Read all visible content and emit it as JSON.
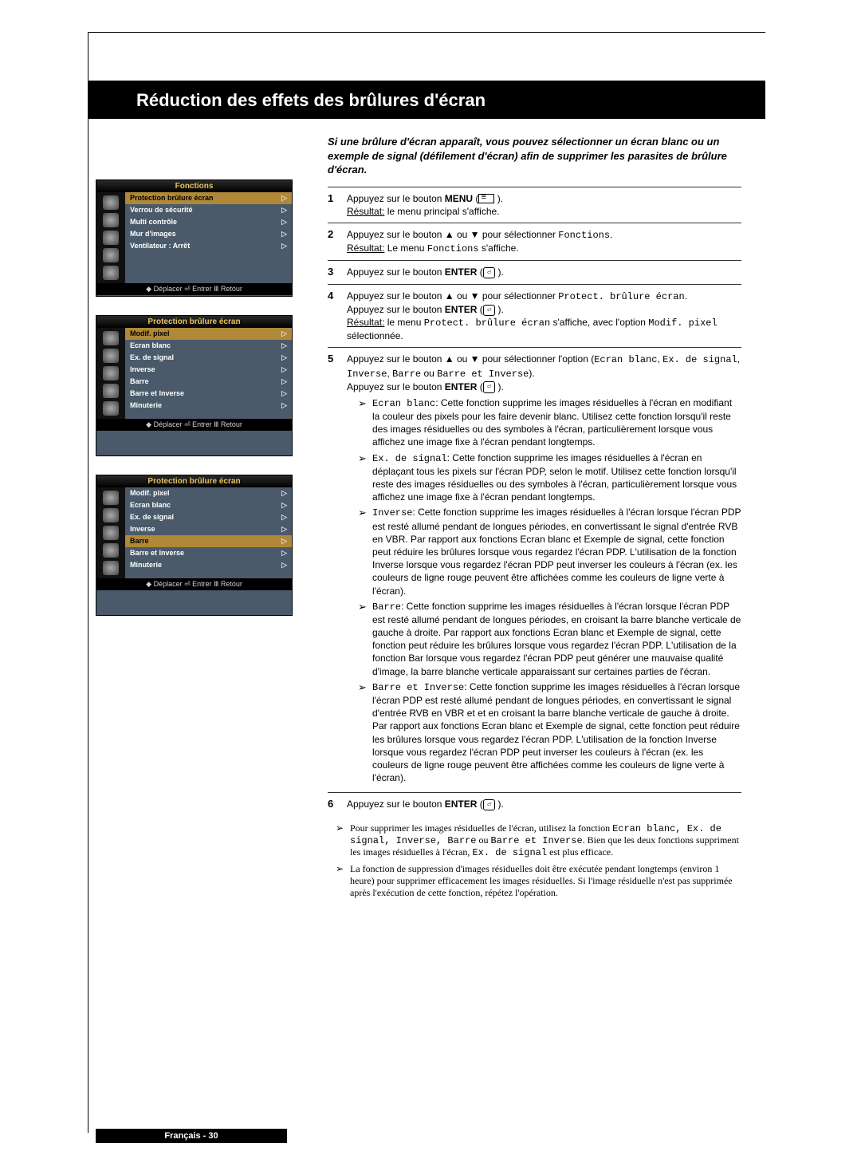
{
  "title": "Réduction des effets des brûlures d'écran",
  "intro": "Si une brûlure d'écran apparaît, vous pouvez sélectionner un écran blanc ou un exemple de signal (défilement d'écran) afin de supprimer les parasites de brûlure d'écran.",
  "steps": {
    "s1": {
      "num": "1",
      "line1": "Appuyez sur le bouton ",
      "btn1": "MENU",
      "suffix1": " (",
      "result_label": "Résultat:",
      "result_text": "   le menu principal s'affiche."
    },
    "s2": {
      "num": "2",
      "line1": "Appuyez sur le bouton ▲ ou ▼ pour sélectionner ",
      "mono1": "Fonctions",
      "suffix1": ".",
      "result_label": "Résultat:",
      "result_text": "   Le menu ",
      "mono2": "Fonctions",
      "result_suffix": " s'affiche."
    },
    "s3": {
      "num": "3",
      "line1": "Appuyez sur le bouton ",
      "btn1": "ENTER",
      "suffix1": " ("
    },
    "s4": {
      "num": "4",
      "line1": "Appuyez sur le bouton ▲ ou ▼ pour sélectionner ",
      "mono1": "Protect. brûlure écran",
      "suffix1": ".",
      "line2": "Appuyez sur le bouton ",
      "btn2": "ENTER",
      "suffix2": " (",
      "result_label": "Résultat:",
      "result_pre": "   le menu ",
      "mono2": "Protect. brûlure écran",
      "result_mid": " s'affiche, avec l'option ",
      "mono3": "Modif. pixel",
      "result_end": " sélectionnée."
    },
    "s5": {
      "num": "5",
      "line1_pre": "Appuyez sur le bouton ▲ ou ▼ pour sélectionner l'option (",
      "mono_a": "Ecran blanc",
      "mono_b": "Ex. de signal",
      "mono_c": "Inverse",
      "mono_d": "Barre",
      "mono_e": "Barre et Inverse",
      "line1_post": ").",
      "line2": "Appuyez sur le bouton ",
      "btn2": "ENTER",
      "suffix2": " (",
      "items": {
        "a": {
          "head": "Ecran blanc",
          "text": ": Cette fonction supprime les images résiduelles à l'écran en modifiant la couleur des pixels pour les faire devenir blanc. Utilisez cette fonction lorsqu'il reste des images résiduelles ou des symboles à l'écran, particulièrement lorsque vous affichez une image fixe à l'écran pendant longtemps."
        },
        "b": {
          "head": "Ex. de signal",
          "text": ": Cette fonction supprime les images résiduelles à l'écran en déplaçant tous les pixels sur l'écran PDP, selon le motif. Utilisez cette fonction lorsqu'il reste des images résiduelles ou des symboles à l'écran, particulièrement lorsque vous affichez une image fixe à l'écran pendant longtemps."
        },
        "c": {
          "head": "Inverse",
          "text": ": Cette fonction supprime les images résiduelles à l'écran lorsque l'écran PDP est resté allumé pendant de longues périodes, en convertissant le signal d'entrée RVB en VBR. Par rapport aux fonctions Ecran blanc et Exemple de signal, cette fonction peut réduire les brûlures lorsque vous regardez l'écran PDP. L'utilisation de la fonction Inverse lorsque vous regardez l'écran PDP peut inverser les couleurs à l'écran (ex. les couleurs de ligne rouge peuvent être affichées comme les couleurs de ligne verte à l'écran)."
        },
        "d": {
          "head": "Barre",
          "text": ": Cette fonction supprime les images résiduelles à l'écran lorsque l'écran PDP est resté allumé pendant de longues périodes, en croisant la barre blanche verticale de gauche à droite. Par rapport aux fonctions Ecran blanc et Exemple de signal, cette fonction peut réduire les brûlures lorsque vous regardez l'écran PDP. L'utilisation de la fonction Bar lorsque vous regardez l'écran PDP peut générer une mauvaise qualité d'image, la barre blanche verticale apparaissant sur certaines parties de l'écran."
        },
        "e": {
          "head": "Barre et Inverse",
          "text": ": Cette fonction supprime les images résiduelles à l'écran lorsque l'écran PDP est resté allumé pendant de longues périodes, en convertissant le signal d'entrée RVB en VBR et et en croisant la barre blanche verticale de gauche à droite. Par rapport aux fonctions Ecran blanc et Exemple de signal, cette fonction peut réduire les brûlures lorsque vous regardez l'écran PDP. L'utilisation de la fonction Inverse lorsque vous regardez l'écran PDP peut inverser les couleurs à l'écran (ex. les couleurs de ligne rouge peuvent être affichées comme les couleurs de ligne verte à l'écran)."
        }
      }
    },
    "s6": {
      "num": "6",
      "line1": "Appuyez sur le bouton ",
      "btn1": "ENTER",
      "suffix1": " ("
    }
  },
  "notes": {
    "n1_pre": "Pour supprimer les images résiduelles de l'écran, utilisez la fonction ",
    "n1_mono": "Ecran blanc, Ex. de signal, Inverse, Barre",
    "n1_mid": " ou ",
    "n1_mono2": "Barre et Inverse",
    "n1_mid2": ". Bien que les deux fonctions suppriment les images résiduelles à l'écran, ",
    "n1_mono3": "Ex. de signal",
    "n1_end": " est plus efficace.",
    "n2": "La fonction de suppression d'images résiduelles doit être exécutée pendant longtemps (environ 1 heure) pour supprimer efficacement les images résiduelles. Si l'image résiduelle n'est pas supprimée après l'exécution de cette fonction, répétez l'opération."
  },
  "footer": "Français - 30",
  "menus": {
    "m1": {
      "header": "Fonctions",
      "rows": [
        {
          "label": "Protection brûlure écran",
          "selected": true
        },
        {
          "label": "Verrou de sécurité",
          "selected": false
        },
        {
          "label": "Multi contrôle",
          "selected": false
        },
        {
          "label": "Mur d'images",
          "selected": false
        },
        {
          "label": "Ventilateur        : Arrêt",
          "selected": false
        }
      ],
      "footer_text": "◆ Déplacer ⏎ Entrer Ⅲ Retour"
    },
    "m2": {
      "header": "Protection brûlure écran",
      "rows": [
        {
          "label": "Modif. pixel",
          "selected": true
        },
        {
          "label": "Ecran blanc",
          "selected": false
        },
        {
          "label": "Ex. de signal",
          "selected": false
        },
        {
          "label": "Inverse",
          "selected": false
        },
        {
          "label": "Barre",
          "selected": false
        },
        {
          "label": "Barre et Inverse",
          "selected": false
        },
        {
          "label": "Minuterie",
          "selected": false
        }
      ],
      "footer_text": "◆ Déplacer ⏎ Entrer Ⅲ Retour"
    },
    "m3": {
      "header": "Protection brûlure écran",
      "rows": [
        {
          "label": "Modif. pixel",
          "selected": false
        },
        {
          "label": "Ecran blanc",
          "selected": false
        },
        {
          "label": "Ex. de signal",
          "selected": false
        },
        {
          "label": "Inverse",
          "selected": false
        },
        {
          "label": "Barre",
          "selected": true
        },
        {
          "label": "Barre et Inverse",
          "selected": false
        },
        {
          "label": "Minuterie",
          "selected": false
        }
      ],
      "footer_text": "◆ Déplacer ⏎ Entrer Ⅲ Retour"
    }
  },
  "enter_glyph": "⏎",
  "close_paren": " )."
}
